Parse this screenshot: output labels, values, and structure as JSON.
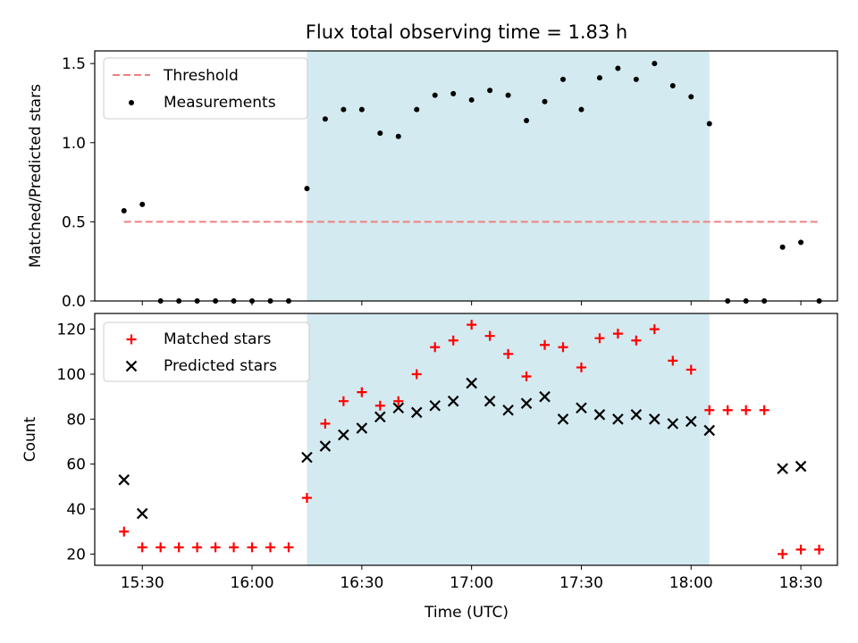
{
  "chart_data": [
    {
      "type": "scatter",
      "title": "Flux total observing time = 1.83 h",
      "xlabel": "",
      "ylabel": "Matched/Predicted stars",
      "ylim": [
        0,
        1.58
      ],
      "yticks": [
        "0.0",
        "0.5",
        "1.0",
        "1.5"
      ],
      "xlim": [
        "15:17",
        "18:40"
      ],
      "shaded_span": [
        "16:15",
        "18:05"
      ],
      "shaded_color": "#d3eaf0",
      "legend_position": "top-left",
      "threshold": {
        "name": "Threshold",
        "y": 0.5,
        "x_start": "15:25",
        "x_end": "18:35",
        "color": "#f08080",
        "style": "dashed"
      },
      "series": [
        {
          "name": "Measurements",
          "marker": "dot",
          "color": "#000000",
          "x": [
            "15:25",
            "15:30",
            "15:35",
            "15:40",
            "15:45",
            "15:50",
            "15:55",
            "16:00",
            "16:05",
            "16:10",
            "16:15",
            "16:20",
            "16:25",
            "16:30",
            "16:35",
            "16:40",
            "16:45",
            "16:50",
            "16:55",
            "17:00",
            "17:05",
            "17:10",
            "17:15",
            "17:20",
            "17:25",
            "17:30",
            "17:35",
            "17:40",
            "17:45",
            "17:50",
            "17:55",
            "18:00",
            "18:05",
            "18:10",
            "18:15",
            "18:20",
            "18:25",
            "18:30",
            "18:35"
          ],
          "y": [
            0.57,
            0.61,
            0,
            0,
            0,
            0,
            0,
            0,
            0,
            0,
            0.71,
            1.15,
            1.21,
            1.21,
            1.06,
            1.04,
            1.21,
            1.3,
            1.31,
            1.27,
            1.33,
            1.3,
            1.14,
            1.26,
            1.4,
            1.21,
            1.41,
            1.47,
            1.4,
            1.5,
            1.36,
            1.29,
            1.12,
            0,
            0,
            0,
            0.34,
            0.37,
            0
          ]
        }
      ]
    },
    {
      "type": "scatter",
      "title": "",
      "xlabel": "Time (UTC)",
      "ylabel": "Count",
      "ylim": [
        15,
        127
      ],
      "yticks": [
        "20",
        "40",
        "60",
        "80",
        "100",
        "120"
      ],
      "xlim": [
        "15:17",
        "18:40"
      ],
      "xticks": [
        "15:30",
        "16:00",
        "16:30",
        "17:00",
        "17:30",
        "18:00",
        "18:30"
      ],
      "shaded_span": [
        "16:15",
        "18:05"
      ],
      "shaded_color": "#d3eaf0",
      "legend_position": "top-left",
      "series": [
        {
          "name": "Matched stars",
          "marker": "plus",
          "color": "#ff0000",
          "x": [
            "15:25",
            "15:30",
            "15:35",
            "15:40",
            "15:45",
            "15:50",
            "15:55",
            "16:00",
            "16:05",
            "16:10",
            "16:15",
            "16:20",
            "16:25",
            "16:30",
            "16:35",
            "16:40",
            "16:45",
            "16:50",
            "16:55",
            "17:00",
            "17:05",
            "17:10",
            "17:15",
            "17:20",
            "17:25",
            "17:30",
            "17:35",
            "17:40",
            "17:45",
            "17:50",
            "17:55",
            "18:00",
            "18:05",
            "18:10",
            "18:15",
            "18:20",
            "18:25",
            "18:30",
            "18:35"
          ],
          "y": [
            30,
            23,
            23,
            23,
            23,
            23,
            23,
            23,
            23,
            23,
            45,
            78,
            88,
            92,
            86,
            88,
            100,
            112,
            115,
            122,
            117,
            109,
            99,
            113,
            112,
            103,
            116,
            118,
            115,
            120,
            106,
            102,
            84,
            84,
            84,
            84,
            20,
            22,
            22
          ]
        },
        {
          "name": "Predicted stars",
          "marker": "x",
          "color": "#000000",
          "x": [
            "15:25",
            "15:30",
            "16:15",
            "16:20",
            "16:25",
            "16:30",
            "16:35",
            "16:40",
            "16:45",
            "16:50",
            "16:55",
            "17:00",
            "17:05",
            "17:10",
            "17:15",
            "17:20",
            "17:25",
            "17:30",
            "17:35",
            "17:40",
            "17:45",
            "17:50",
            "17:55",
            "18:00",
            "18:05",
            "18:25",
            "18:30"
          ],
          "y": [
            53,
            38,
            63,
            68,
            73,
            76,
            81,
            85,
            83,
            86,
            88,
            96,
            88,
            84,
            87,
            90,
            80,
            85,
            82,
            80,
            82,
            80,
            78,
            79,
            75,
            58,
            59
          ]
        }
      ]
    }
  ]
}
